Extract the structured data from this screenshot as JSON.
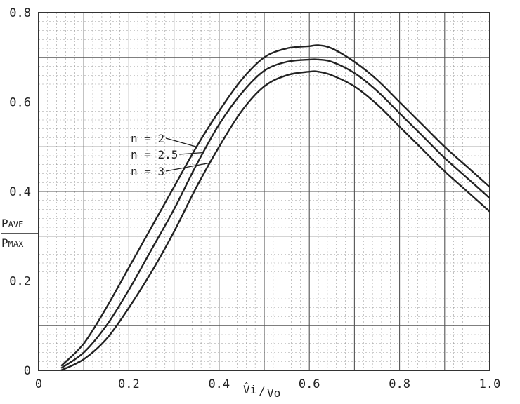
{
  "chart_data": {
    "type": "line",
    "xlabel": {
      "main": "V̂i",
      "sep": "/",
      "den": "Vo"
    },
    "ylabel": {
      "num": "PAVE",
      "num_main": "P",
      "num_sub": "AVE",
      "den": "PMAX",
      "den_main": "P",
      "den_sub": "MAX"
    },
    "xlim": [
      0,
      1.0
    ],
    "ylim": [
      0,
      0.8
    ],
    "xticks": [
      "0",
      "0.2",
      "0.4",
      "0.6",
      "0.8",
      "1.0"
    ],
    "yticks": [
      "0",
      "0.2",
      "0.4",
      "0.6",
      "0.8"
    ],
    "grid": true,
    "series": [
      {
        "name": "n = 2",
        "x": [
          0.05,
          0.1,
          0.15,
          0.2,
          0.25,
          0.3,
          0.35,
          0.4,
          0.45,
          0.5,
          0.55,
          0.6,
          0.62,
          0.65,
          0.7,
          0.75,
          0.8,
          0.85,
          0.9,
          0.95,
          1.0
        ],
        "y": [
          0.01,
          0.06,
          0.14,
          0.23,
          0.32,
          0.41,
          0.5,
          0.58,
          0.65,
          0.7,
          0.72,
          0.725,
          0.727,
          0.72,
          0.69,
          0.65,
          0.6,
          0.55,
          0.5,
          0.455,
          0.41
        ]
      },
      {
        "name": "n = 2.5",
        "x": [
          0.05,
          0.1,
          0.15,
          0.2,
          0.25,
          0.3,
          0.35,
          0.4,
          0.45,
          0.5,
          0.55,
          0.6,
          0.62,
          0.65,
          0.7,
          0.75,
          0.8,
          0.85,
          0.9,
          0.95,
          1.0
        ],
        "y": [
          0.005,
          0.04,
          0.1,
          0.18,
          0.27,
          0.36,
          0.46,
          0.55,
          0.62,
          0.67,
          0.69,
          0.695,
          0.695,
          0.69,
          0.665,
          0.625,
          0.575,
          0.525,
          0.475,
          0.43,
          0.385
        ]
      },
      {
        "name": "n = 3",
        "x": [
          0.05,
          0.1,
          0.15,
          0.2,
          0.25,
          0.3,
          0.35,
          0.4,
          0.45,
          0.5,
          0.55,
          0.6,
          0.62,
          0.65,
          0.7,
          0.75,
          0.8,
          0.85,
          0.9,
          0.95,
          1.0
        ],
        "y": [
          0.0,
          0.025,
          0.07,
          0.14,
          0.22,
          0.31,
          0.41,
          0.5,
          0.58,
          0.635,
          0.66,
          0.668,
          0.668,
          0.66,
          0.635,
          0.595,
          0.545,
          0.495,
          0.445,
          0.4,
          0.355
        ]
      }
    ],
    "annotations": [
      {
        "text": "n = 2",
        "series": 0,
        "x": 0.35
      },
      {
        "text": "n = 2.5",
        "series": 1,
        "x": 0.365
      },
      {
        "text": "n = 3",
        "series": 2,
        "x": 0.38
      }
    ]
  }
}
